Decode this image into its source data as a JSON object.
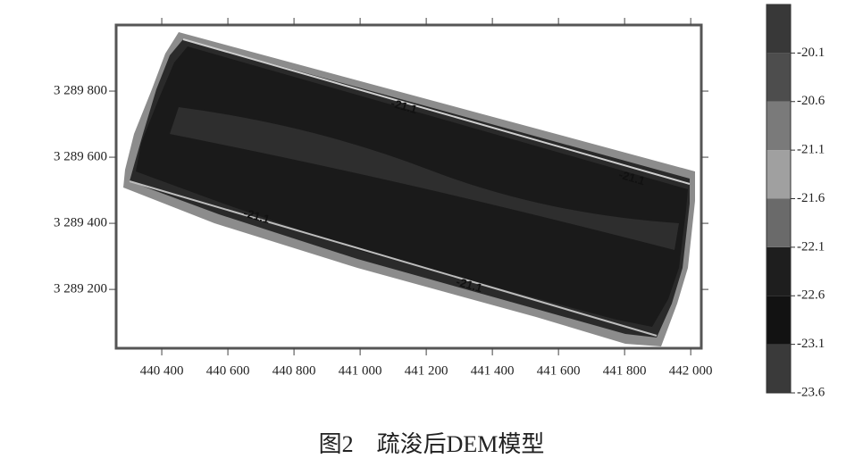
{
  "chart_data": {
    "type": "contour",
    "caption": "图2　疏浚后DEM模型",
    "xlim": [
      440262,
      442032
    ],
    "xticks": [
      {
        "value": 440400,
        "label": "440 400"
      },
      {
        "value": 440600,
        "label": "440 600"
      },
      {
        "value": 440800,
        "label": "440 800"
      },
      {
        "value": 441000,
        "label": "441 000"
      },
      {
        "value": 441200,
        "label": "441 200"
      },
      {
        "value": 441400,
        "label": "441 400"
      },
      {
        "value": 441600,
        "label": "441 600"
      },
      {
        "value": 441800,
        "label": "441 800"
      },
      {
        "value": 442000,
        "label": "442 000"
      }
    ],
    "ylim": [
      3289022,
      3290000
    ],
    "yticks": [
      {
        "value": 3289200,
        "label": "3 289 200"
      },
      {
        "value": 3289400,
        "label": "3 289 400"
      },
      {
        "value": 3289600,
        "label": "3 289 600"
      },
      {
        "value": 3289800,
        "label": "3 289 800"
      }
    ],
    "contour_labels": [
      "-21.1",
      "-21.1",
      "-21.1",
      "-21.1"
    ],
    "colorbar": {
      "lim": [
        -23.6,
        -19.6
      ],
      "ticks": [
        -23.6,
        -23.1,
        -22.6,
        -22.1,
        -21.6,
        -21.1,
        -20.6,
        -20.1
      ],
      "colors": [
        "#3a3a3a",
        "#121212",
        "#1e1e1e",
        "#6a6a6a",
        "#a0a0a0",
        "#7a7a7a",
        "#4d4d4d",
        "#383838"
      ]
    }
  }
}
